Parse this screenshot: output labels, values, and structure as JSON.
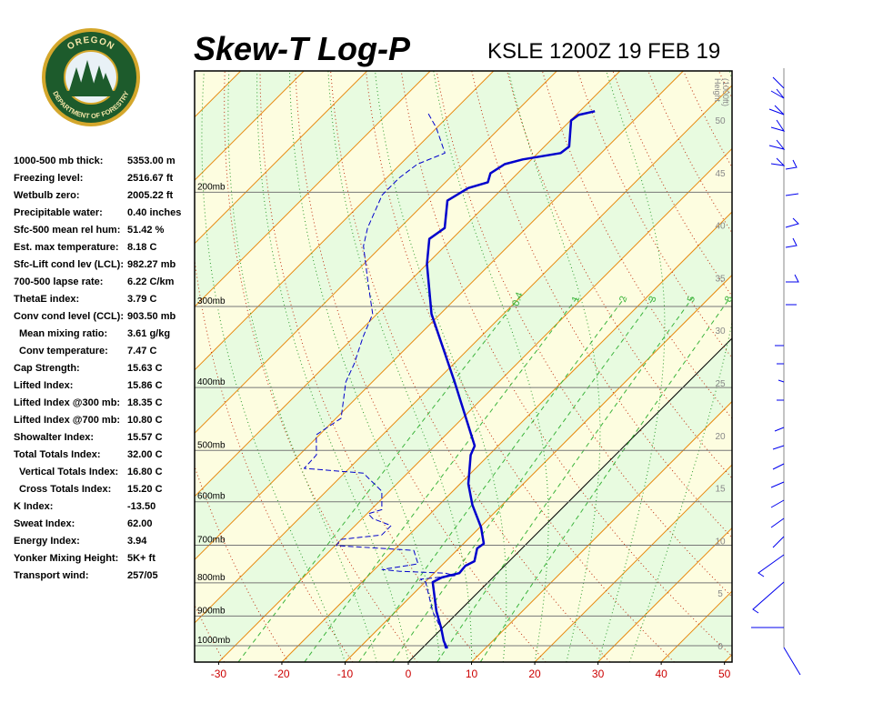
{
  "logo": {
    "top": "OREGON",
    "bottom": "DEPARTMENT OF FORESTRY"
  },
  "indices": [
    {
      "label": "1000-500 mb thick:",
      "value": "5353.00 m"
    },
    {
      "label": "Freezing level:",
      "value": "2516.67 ft"
    },
    {
      "label": "Wetbulb zero:",
      "value": "2005.22 ft"
    },
    {
      "label": "Precipitable water:",
      "value": "0.40 inches"
    },
    {
      "label": "Sfc-500 mean rel hum:",
      "value": "51.42 %"
    },
    {
      "label": "Est. max temperature:",
      "value": "8.18 C"
    },
    {
      "label": "Sfc-Lift cond lev (LCL):",
      "value": "982.27 mb"
    },
    {
      "label": "700-500 lapse rate:",
      "value": "6.22 C/km"
    },
    {
      "label": "ThetaE index:",
      "value": "3.79 C"
    },
    {
      "label": "Conv cond level (CCL):",
      "value": "903.50 mb"
    },
    {
      "label": "Mean mixing ratio:",
      "value": "3.61 g/kg",
      "indent": true
    },
    {
      "label": "Conv temperature:",
      "value": "7.47 C",
      "indent": true
    },
    {
      "label": "Cap Strength:",
      "value": "15.63 C"
    },
    {
      "label": "Lifted Index:",
      "value": "15.86 C"
    },
    {
      "label": "Lifted Index @300 mb:",
      "value": "18.35 C"
    },
    {
      "label": "Lifted Index @700 mb:",
      "value": "10.80 C"
    },
    {
      "label": "Showalter Index:",
      "value": "15.57 C"
    },
    {
      "label": "Total Totals Index:",
      "value": "32.00 C"
    },
    {
      "label": "Vertical Totals Index:",
      "value": "16.80 C",
      "indent": true
    },
    {
      "label": "Cross Totals Index:",
      "value": "15.20 C",
      "indent": true
    },
    {
      "label": "K Index:",
      "value": "-13.50"
    },
    {
      "label": "Sweat Index:",
      "value": "62.00"
    },
    {
      "label": "Energy Index:",
      "value": "3.94"
    },
    {
      "label": "Yonker Mixing Height:",
      "value": "5K+ ft"
    },
    {
      "label": "Transport wind:",
      "value": "257/05"
    }
  ],
  "chart_data": {
    "type": "skew-t",
    "title": "Skew-T Log-P",
    "subtitle": "KSLE 1200Z 19 FEB 19",
    "xlim": [
      -33.8,
      51.2
    ],
    "xticks": [
      -30,
      -20,
      -10,
      0,
      10,
      20,
      30,
      40,
      50
    ],
    "ylim": [
      1060,
      130
    ],
    "log_y": true,
    "yticks": [
      {
        "value": 1000,
        "label": "1000mb"
      },
      {
        "value": 900,
        "label": "900mb"
      },
      {
        "value": 800,
        "label": "800mb"
      },
      {
        "value": 700,
        "label": "700mb"
      },
      {
        "value": 600,
        "label": "600mb"
      },
      {
        "value": 500,
        "label": "500mb"
      },
      {
        "value": 400,
        "label": "400mb"
      },
      {
        "value": 300,
        "label": "300mb"
      },
      {
        "value": 200,
        "label": "200mb"
      }
    ],
    "height_label": [
      "Height",
      "(1000ft)"
    ],
    "height_ticks": [
      0,
      5,
      10,
      15,
      20,
      25,
      30,
      35,
      40,
      45,
      50
    ],
    "mixing_ratios": [
      0.4,
      1,
      2,
      3,
      5,
      8
    ],
    "series": [
      {
        "color": "#0000cc",
        "dashed": false,
        "pressure": [
          1010,
          984,
          937.5,
          885,
          798,
          785,
          773,
          753,
          741,
          708,
          696,
          657,
          607,
          563,
          508,
          492,
          392,
          308,
          258,
          236,
          227,
          206,
          197,
          193,
          187,
          181,
          178,
          174,
          170,
          155,
          152,
          150
        ],
        "values": [
          4.0,
          2.3,
          -0.3,
          -3.6,
          -8.8,
          -8.1,
          -6.0,
          -6.2,
          -5.5,
          -7.1,
          -6.8,
          -9.8,
          -14.7,
          -18.7,
          -22.9,
          -23.7,
          -37.0,
          -51.4,
          -60.0,
          -63.6,
          -62.9,
          -66.8,
          -65.5,
          -63.3,
          -64.3,
          -63.5,
          -61.4,
          -56.4,
          -56.1,
          -59.9,
          -59.6,
          -57.6
        ]
      },
      {
        "color": "#0000cc",
        "dashed": true,
        "pressure": [
          1010,
          937.5,
          885,
          798,
          790,
          780,
          773,
          768,
          763,
          748,
          713,
          701,
          686,
          675,
          653,
          637,
          626,
          617,
          578,
          542,
          533,
          508,
          473,
          446,
          392,
          368,
          334,
          308,
          275,
          242,
          227,
          202,
          190,
          181,
          174,
          159,
          151
        ],
        "values": [
          3.7,
          -0.4,
          -4.2,
          -9.9,
          -11.2,
          -6.3,
          -8.2,
          -15.7,
          -18.8,
          -14.0,
          -16.8,
          -29.8,
          -30.1,
          -24.3,
          -24.3,
          -28.3,
          -29.8,
          -28.3,
          -31.2,
          -37.0,
          -47.1,
          -47.3,
          -50.5,
          -49.2,
          -54.2,
          -55.7,
          -58.6,
          -60.7,
          -66.5,
          -72.9,
          -75.1,
          -78.0,
          -78.0,
          -77.3,
          -74.7,
          -80.1,
          -83.7
        ]
      }
    ]
  }
}
